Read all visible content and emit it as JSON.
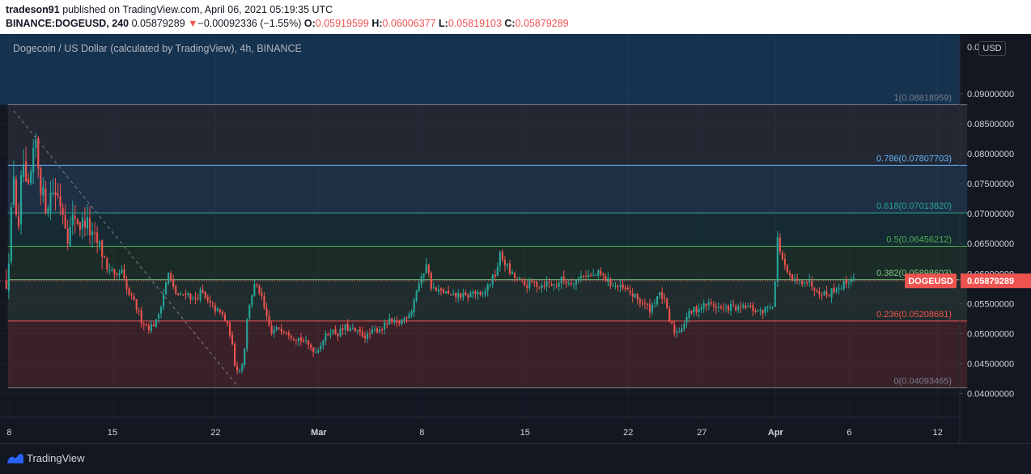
{
  "header": {
    "publisher": "tradeson91",
    "published_text": "published on TradingView.com, April 06, 2021 05:19:35 UTC",
    "symbol": "BINANCE:DOGEUSD, 240",
    "last_price": "0.05879289",
    "change_arrow": "▼",
    "change": "−0.00092336 (−1.55%)",
    "o_label": "O:",
    "o_value": "0.05919599",
    "h_label": "H:",
    "h_value": "0.06006377",
    "l_label": "L:",
    "l_value": "0.05819103",
    "c_label": "C:",
    "c_value": "0.05879289"
  },
  "chart_title": "Dogecoin / US Dollar (calculated by TradingView), 4h, BINANCE",
  "currency_button": "USD",
  "footer": {
    "brand": "TradingView",
    "logo_icon": "tradingview-logo-icon"
  },
  "colors": {
    "background": "#131722",
    "up": "#26a69a",
    "down": "#ef5350",
    "grid": "#1e222d",
    "axis_text": "#d1d4dc"
  },
  "chart_data": {
    "type": "candlestick",
    "title": "Dogecoin / US Dollar (calculated by TradingView), 4h, BINANCE",
    "symbol": "DOGEUSD",
    "timeframe": "4h",
    "ylim": [
      0.036,
      0.1
    ],
    "y_ticks": [
      "0.04000000",
      "0.04500000",
      "0.05000000",
      "0.05500000",
      "0.06000000",
      "0.06500000",
      "0.07000000",
      "0.07500000",
      "0.08000000",
      "0.08500000",
      "0.09000000"
    ],
    "top_tick_partial": "0.0",
    "x_ticks": [
      {
        "label": "8",
        "day": 8
      },
      {
        "label": "15",
        "day": 15
      },
      {
        "label": "22",
        "day": 22
      },
      {
        "label": "Mar",
        "day": 29
      },
      {
        "label": "8",
        "day": 36
      },
      {
        "label": "15",
        "day": 43
      },
      {
        "label": "22",
        "day": 50
      },
      {
        "label": "27",
        "day": 55
      },
      {
        "label": "Apr",
        "day": 60
      },
      {
        "label": "6",
        "day": 65
      },
      {
        "label": "12",
        "day": 71
      }
    ],
    "x_range_days": [
      7.7,
      72.5
    ],
    "last_price_label": "DOGEUSD",
    "last_price_value": "0.05879289",
    "last_price": 0.05879289,
    "fibonacci": {
      "start_day": 7.9,
      "end_day": 73,
      "levels": [
        {
          "label": "1(0.08818959)",
          "value": 0.08818959,
          "color": "#787b86"
        },
        {
          "label": "0.786(0.07807703)",
          "value": 0.07807703,
          "color": "#64b5f6"
        },
        {
          "label": "0.618(0.07013820)",
          "value": 0.0701382,
          "color": "#26a69a"
        },
        {
          "label": "0.5(0.06456212)",
          "value": 0.06456212,
          "color": "#4caf50"
        },
        {
          "label": "0.382(0.05898603)",
          "value": 0.05898603,
          "color": "#81c784"
        },
        {
          "label": "0.236(0.05208681)",
          "value": 0.05208681,
          "color": "#ef5350"
        },
        {
          "label": "0(0.04093465)",
          "value": 0.04093465,
          "color": "#787b86"
        }
      ],
      "trend_line": [
        {
          "day": 8.3,
          "value": 0.0872
        },
        {
          "day": 23.6,
          "value": 0.0409
        }
      ]
    },
    "price_path": [
      [
        7.8,
        0.0585
      ],
      [
        8.0,
        0.064
      ],
      [
        8.3,
        0.077
      ],
      [
        8.6,
        0.065
      ],
      [
        8.9,
        0.08
      ],
      [
        9.2,
        0.072
      ],
      [
        9.5,
        0.077
      ],
      [
        9.8,
        0.082
      ],
      [
        10.1,
        0.075
      ],
      [
        10.5,
        0.071
      ],
      [
        10.9,
        0.074
      ],
      [
        11.3,
        0.073
      ],
      [
        11.7,
        0.07
      ],
      [
        12.0,
        0.066
      ],
      [
        12.4,
        0.07
      ],
      [
        12.8,
        0.068
      ],
      [
        13.2,
        0.069
      ],
      [
        13.6,
        0.066
      ],
      [
        14.0,
        0.065
      ],
      [
        14.4,
        0.063
      ],
      [
        14.8,
        0.06
      ],
      [
        15.2,
        0.059
      ],
      [
        15.6,
        0.0605
      ],
      [
        16.0,
        0.057
      ],
      [
        16.5,
        0.055
      ],
      [
        17.0,
        0.052
      ],
      [
        17.5,
        0.051
      ],
      [
        18.0,
        0.052
      ],
      [
        18.4,
        0.056
      ],
      [
        18.8,
        0.06
      ],
      [
        19.2,
        0.057
      ],
      [
        19.6,
        0.056
      ],
      [
        20.0,
        0.057
      ],
      [
        20.5,
        0.0555
      ],
      [
        21.0,
        0.057
      ],
      [
        21.5,
        0.055
      ],
      [
        22.0,
        0.054
      ],
      [
        22.5,
        0.053
      ],
      [
        23.0,
        0.05
      ],
      [
        23.3,
        0.045
      ],
      [
        23.6,
        0.0435
      ],
      [
        23.9,
        0.046
      ],
      [
        24.2,
        0.054
      ],
      [
        24.6,
        0.058
      ],
      [
        25.0,
        0.057
      ],
      [
        25.4,
        0.053
      ],
      [
        25.8,
        0.05
      ],
      [
        26.3,
        0.051
      ],
      [
        26.8,
        0.0505
      ],
      [
        27.3,
        0.0495
      ],
      [
        27.8,
        0.049
      ],
      [
        28.3,
        0.048
      ],
      [
        28.8,
        0.047
      ],
      [
        29.3,
        0.049
      ],
      [
        29.8,
        0.0505
      ],
      [
        30.3,
        0.05
      ],
      [
        30.8,
        0.051
      ],
      [
        31.3,
        0.0505
      ],
      [
        31.8,
        0.05
      ],
      [
        32.3,
        0.0495
      ],
      [
        32.8,
        0.0505
      ],
      [
        33.3,
        0.051
      ],
      [
        33.8,
        0.052
      ],
      [
        34.3,
        0.0515
      ],
      [
        34.8,
        0.0525
      ],
      [
        35.3,
        0.054
      ],
      [
        35.7,
        0.058
      ],
      [
        36.0,
        0.059
      ],
      [
        36.3,
        0.062
      ],
      [
        36.6,
        0.058
      ],
      [
        37.0,
        0.057
      ],
      [
        37.5,
        0.057
      ],
      [
        38.0,
        0.056
      ],
      [
        38.5,
        0.0565
      ],
      [
        39.0,
        0.056
      ],
      [
        39.5,
        0.057
      ],
      [
        40.0,
        0.056
      ],
      [
        40.5,
        0.058
      ],
      [
        41.0,
        0.06
      ],
      [
        41.3,
        0.063
      ],
      [
        41.6,
        0.062
      ],
      [
        42.0,
        0.06
      ],
      [
        42.5,
        0.059
      ],
      [
        43.0,
        0.058
      ],
      [
        43.5,
        0.0585
      ],
      [
        44.0,
        0.058
      ],
      [
        44.5,
        0.0585
      ],
      [
        45.0,
        0.058
      ],
      [
        45.5,
        0.059
      ],
      [
        46.0,
        0.0585
      ],
      [
        46.5,
        0.059
      ],
      [
        47.0,
        0.06
      ],
      [
        47.5,
        0.0595
      ],
      [
        48.0,
        0.06
      ],
      [
        48.5,
        0.059
      ],
      [
        49.0,
        0.058
      ],
      [
        49.5,
        0.0575
      ],
      [
        50.0,
        0.057
      ],
      [
        50.5,
        0.056
      ],
      [
        51.0,
        0.055
      ],
      [
        51.5,
        0.054
      ],
      [
        52.0,
        0.0565
      ],
      [
        52.4,
        0.056
      ],
      [
        52.8,
        0.052
      ],
      [
        53.2,
        0.05
      ],
      [
        53.6,
        0.051
      ],
      [
        54.0,
        0.053
      ],
      [
        54.5,
        0.054
      ],
      [
        55.0,
        0.0545
      ],
      [
        55.5,
        0.055
      ],
      [
        56.0,
        0.0545
      ],
      [
        56.5,
        0.054
      ],
      [
        57.0,
        0.0545
      ],
      [
        57.5,
        0.054
      ],
      [
        58.0,
        0.0545
      ],
      [
        58.5,
        0.054
      ],
      [
        59.0,
        0.0535
      ],
      [
        59.5,
        0.0545
      ],
      [
        59.9,
        0.055
      ],
      [
        60.1,
        0.066
      ],
      [
        60.3,
        0.064
      ],
      [
        60.6,
        0.061
      ],
      [
        61.0,
        0.059
      ],
      [
        61.5,
        0.0585
      ],
      [
        62.0,
        0.059
      ],
      [
        62.5,
        0.058
      ],
      [
        63.0,
        0.057
      ],
      [
        63.5,
        0.0565
      ],
      [
        64.0,
        0.0575
      ],
      [
        64.5,
        0.058
      ],
      [
        65.0,
        0.059
      ],
      [
        65.3,
        0.0588
      ]
    ]
  }
}
